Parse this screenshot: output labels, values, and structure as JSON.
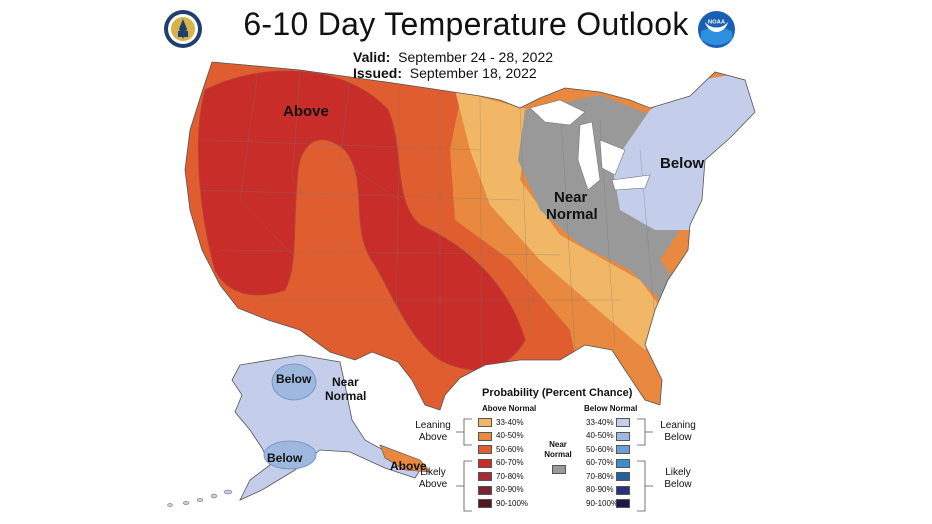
{
  "header": {
    "title": "6-10 Day Temperature Outlook",
    "valid_label": "Valid:",
    "valid_value": "September 24 - 28, 2022",
    "issued_label": "Issued:",
    "issued_value": "September 18, 2022",
    "left_logo": "department-of-commerce-seal",
    "right_logo": "noaa-logo",
    "right_logo_text": "NOAA"
  },
  "map": {
    "labels": {
      "above": "Above",
      "below": "Below",
      "near_normal_1": "Near",
      "near_normal_2": "Normal",
      "ak_below_north": "Below",
      "ak_below_south": "Below",
      "ak_near_1": "Near",
      "ak_near_2": "Normal",
      "ak_above": "Above"
    },
    "colors": {
      "above_33_40": "#f2b766",
      "above_40_50": "#e8893f",
      "above_50_60": "#df5d2f",
      "above_60_70": "#c92d2a",
      "below_33_40": "#c4cde9",
      "below_40_50": "#9fb8df",
      "near_normal": "#999999"
    }
  },
  "legend": {
    "title": "Probability (Percent Chance)",
    "above_heading": "Above Normal",
    "below_heading": "Below Normal",
    "near_label_1": "Near",
    "near_label_2": "Normal",
    "leaning_above_1": "Leaning",
    "leaning_above_2": "Above",
    "likely_above_1": "Likely",
    "likely_above_2": "Above",
    "leaning_below_1": "Leaning",
    "leaning_below_2": "Below",
    "likely_below_1": "Likely",
    "likely_below_2": "Below",
    "above_items": [
      {
        "range": "33-40%",
        "color": "#f2b766"
      },
      {
        "range": "40-50%",
        "color": "#e8893f"
      },
      {
        "range": "50-60%",
        "color": "#df5d2f"
      },
      {
        "range": "60-70%",
        "color": "#c92d2a"
      },
      {
        "range": "70-80%",
        "color": "#a82a36"
      },
      {
        "range": "80-90%",
        "color": "#7d2430"
      },
      {
        "range": "90-100%",
        "color": "#4e1a20"
      }
    ],
    "below_items": [
      {
        "range": "33-40%",
        "color": "#c4cde9"
      },
      {
        "range": "40-50%",
        "color": "#9fb8df"
      },
      {
        "range": "50-60%",
        "color": "#6d9fd6"
      },
      {
        "range": "60-70%",
        "color": "#3b8fcf"
      },
      {
        "range": "70-80%",
        "color": "#245e9c"
      },
      {
        "range": "80-90%",
        "color": "#2b2f7e"
      },
      {
        "range": "90-100%",
        "color": "#23164f"
      }
    ],
    "near_color": "#999999"
  }
}
